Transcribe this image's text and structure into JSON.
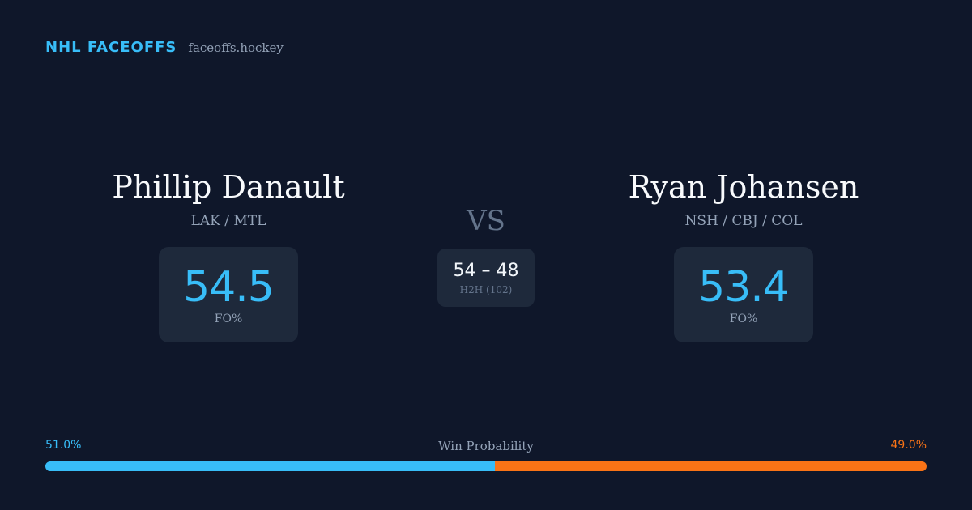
{
  "brand": {
    "name": "NHL FACEOFFS",
    "domain": "faceoffs.hockey"
  },
  "players": {
    "left": {
      "name": "Phillip Danault",
      "teams": "LAK / MTL",
      "stat_value": "54.5",
      "stat_label": "FO%"
    },
    "right": {
      "name": "Ryan Johansen",
      "teams": "NSH / CBJ / COL",
      "stat_value": "53.4",
      "stat_label": "FO%"
    }
  },
  "versus": {
    "label": "VS",
    "h2h_score": "54 – 48",
    "h2h_label": "H2H (102)"
  },
  "win_probability": {
    "title": "Win Probability",
    "left_label": "51.0%",
    "right_label": "49.0%",
    "left_value": 51.0,
    "right_value": 49.0,
    "left_color": "#38bdf8",
    "right_color": "#f97316"
  }
}
